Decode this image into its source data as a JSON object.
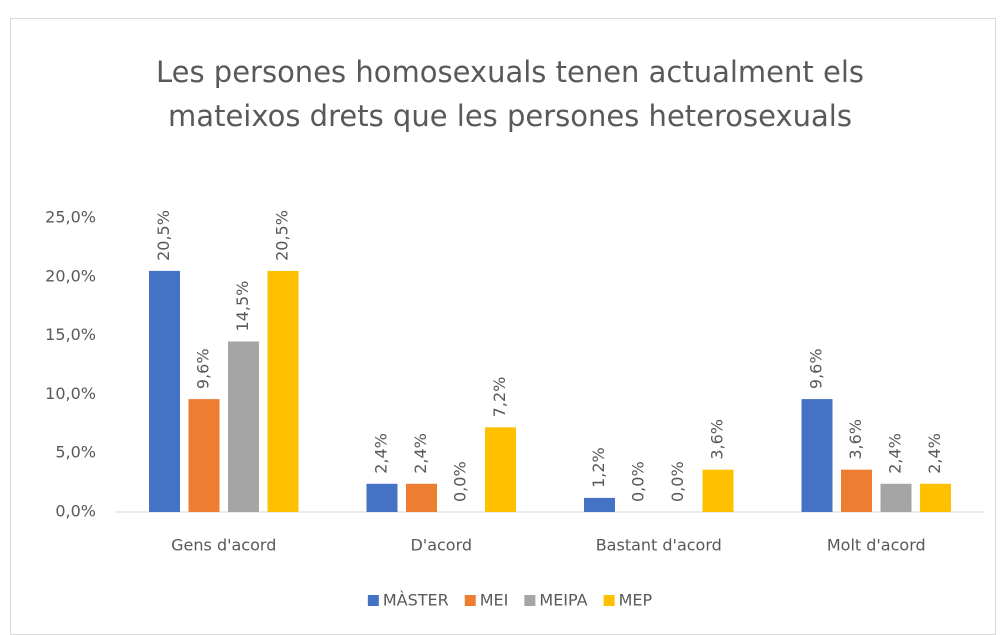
{
  "chart_data": {
    "type": "bar",
    "title": "Les persones homosexuals tenen actualment els mateixos drets que les persones heterosexuals",
    "categories": [
      "Gens d'acord",
      "D'acord",
      "Bastant d'acord",
      "Molt d'acord"
    ],
    "series": [
      {
        "name": "MÀSTER",
        "color": "#4472c4",
        "values": [
          20.5,
          2.4,
          1.2,
          9.6
        ],
        "value_labels": [
          "20,5%",
          "2,4%",
          "1,2%",
          "9,6%"
        ]
      },
      {
        "name": "MEI",
        "color": "#ed7d31",
        "values": [
          9.6,
          2.4,
          0.0,
          3.6
        ],
        "value_labels": [
          "9,6%",
          "2,4%",
          "0,0%",
          "3,6%"
        ]
      },
      {
        "name": "MEIPA",
        "color": "#a5a5a5",
        "values": [
          14.5,
          0.0,
          0.0,
          2.4
        ],
        "value_labels": [
          "14,5%",
          "0,0%",
          "0,0%",
          "2,4%"
        ]
      },
      {
        "name": "MEP",
        "color": "#ffc000",
        "values": [
          20.5,
          7.2,
          3.6,
          2.4
        ],
        "value_labels": [
          "20,5%",
          "7,2%",
          "3,6%",
          "2,4%"
        ]
      }
    ],
    "ylim": [
      0,
      25
    ],
    "yticks": [
      {
        "value": 0,
        "label": "0,0%"
      },
      {
        "value": 5,
        "label": "5,0%"
      },
      {
        "value": 10,
        "label": "10,0%"
      },
      {
        "value": 15,
        "label": "15,0%"
      },
      {
        "value": 20,
        "label": "20,0%"
      },
      {
        "value": 25,
        "label": "25,0%"
      }
    ],
    "grid": false,
    "legend": "bottom"
  }
}
